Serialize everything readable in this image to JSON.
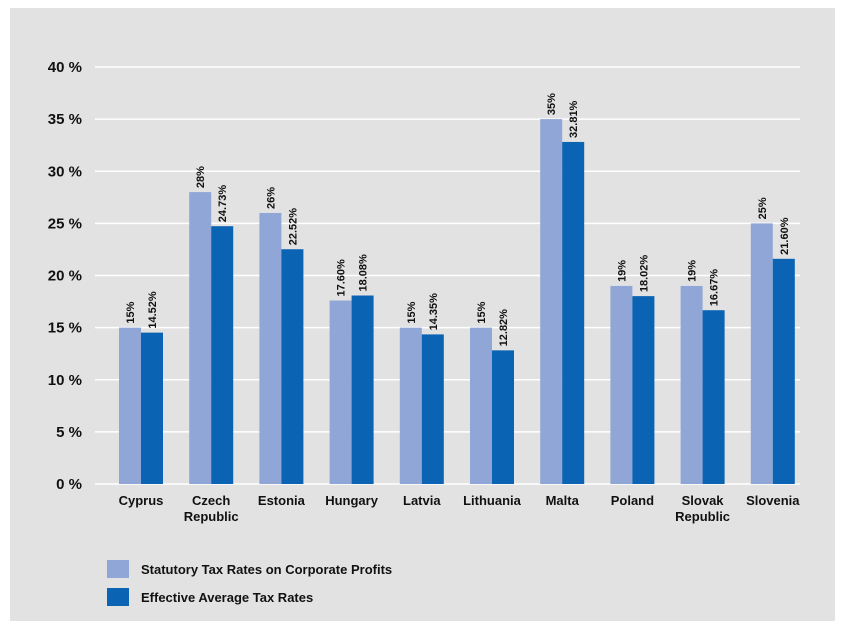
{
  "colors": {
    "background": "#e2e2e2",
    "grid": "#ffffff",
    "statutory": "#8fa6d6",
    "effective": "#0b63b3"
  },
  "chart_data": {
    "type": "bar",
    "title": "",
    "xlabel": "",
    "ylabel": "",
    "ylim": [
      0,
      40
    ],
    "y_ticks": [
      0,
      5,
      10,
      15,
      20,
      25,
      30,
      35,
      40
    ],
    "y_tick_labels": [
      "0 %",
      "5 %",
      "10 %",
      "15 %",
      "20 %",
      "25 %",
      "30 %",
      "35 %",
      "40 %"
    ],
    "grid": true,
    "legend_position": "bottom-left",
    "categories": [
      [
        "Cyprus"
      ],
      [
        "Czech",
        "Republic"
      ],
      [
        "Estonia"
      ],
      [
        "Hungary"
      ],
      [
        "Latvia"
      ],
      [
        "Lithuania"
      ],
      [
        "Malta"
      ],
      [
        "Poland"
      ],
      [
        "Slovak",
        "Republic"
      ],
      [
        "Slovenia"
      ]
    ],
    "series": [
      {
        "name": "Statutory Tax Rates on Corporate Profits",
        "values": [
          15,
          28,
          26,
          17.6,
          15,
          15,
          35,
          19,
          19,
          25
        ],
        "labels": [
          "15%",
          "28%",
          "26%",
          "17.60%",
          "15%",
          "15%",
          "35%",
          "19%",
          "19%",
          "25%"
        ]
      },
      {
        "name": "Effective Average Tax Rates",
        "values": [
          14.52,
          24.73,
          22.52,
          18.08,
          14.35,
          12.82,
          32.81,
          18.02,
          16.67,
          21.6
        ],
        "labels": [
          "14.52%",
          "24.73%",
          "22.52%",
          "18.08%",
          "14.35%",
          "12.82%",
          "32.81%",
          "18.02%",
          "16.67%",
          "21.60%"
        ]
      }
    ]
  }
}
